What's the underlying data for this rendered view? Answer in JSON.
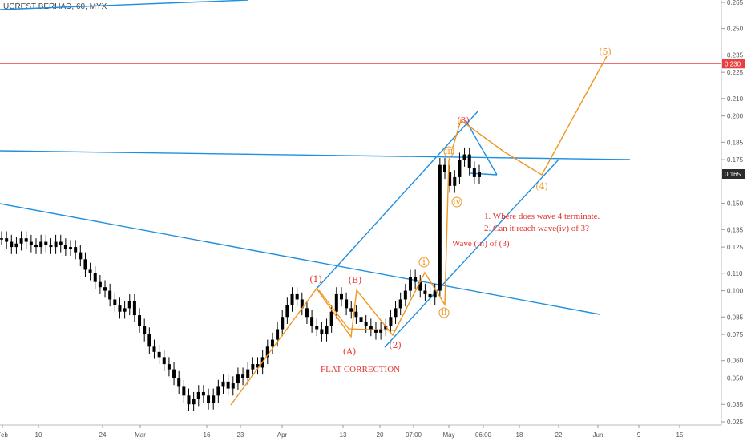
{
  "header": {
    "symbol_label": "UCREST BERHAD, 60, MYX"
  },
  "colors": {
    "trend": "#1f8fe0",
    "wave": "#f0961e",
    "label": "#e3342f",
    "candle": "#000000",
    "level": "#e84040",
    "level_tag": "#e84040",
    "last_tag": "#2b2b2b"
  },
  "chart_data": {
    "type": "candlestick",
    "title": "UCREST BERHAD, 60, MYX",
    "ylim": [
      0.025,
      0.265
    ],
    "y_ticks": [
      "0.265",
      "0.250",
      "0.235",
      "0.225",
      "0.210",
      "0.200",
      "0.185",
      "0.175",
      "0.150",
      "0.135",
      "0.125",
      "0.110",
      "0.100",
      "0.085",
      "0.075",
      "0.060",
      "0.050",
      "0.035",
      "0.025"
    ],
    "x_ticks": [
      "Feb",
      "10",
      "24",
      "Mar",
      "16",
      "23",
      "Apr",
      "13",
      "20",
      "07:00",
      "May",
      "06:00",
      "18",
      "22",
      "Jun",
      "9",
      "15"
    ],
    "price_level": 0.23,
    "price_level_label": "0.230",
    "last_price_label": "0.165",
    "price_bars": [
      0.13,
      0.128,
      0.125,
      0.127,
      0.13,
      0.128,
      0.126,
      0.125,
      0.128,
      0.126,
      0.125,
      0.128,
      0.126,
      0.124,
      0.125,
      0.122,
      0.118,
      0.112,
      0.11,
      0.105,
      0.102,
      0.1,
      0.095,
      0.092,
      0.088,
      0.09,
      0.094,
      0.086,
      0.08,
      0.075,
      0.068,
      0.065,
      0.062,
      0.058,
      0.055,
      0.05,
      0.045,
      0.04,
      0.035,
      0.038,
      0.042,
      0.04,
      0.036,
      0.04,
      0.045,
      0.048,
      0.044,
      0.047,
      0.052,
      0.05,
      0.055,
      0.058,
      0.056,
      0.062,
      0.068,
      0.072,
      0.078,
      0.085,
      0.092,
      0.098,
      0.095,
      0.09,
      0.085,
      0.08,
      0.078,
      0.075,
      0.08,
      0.088,
      0.098,
      0.095,
      0.09,
      0.088,
      0.085,
      0.082,
      0.08,
      0.078,
      0.076,
      0.078,
      0.08,
      0.085,
      0.09,
      0.095,
      0.1,
      0.108,
      0.105,
      0.1,
      0.098,
      0.096,
      0.1,
      0.172,
      0.168,
      0.16,
      0.165,
      0.175,
      0.178,
      0.17,
      0.165,
      0.168
    ],
    "annotations": [
      "(1)",
      "(B)",
      "(A)",
      "(2)",
      "i",
      "ii",
      "iii",
      "(3)",
      "iv",
      "(4)",
      "(5)"
    ],
    "notes": {
      "flat_correction": "FLAT CORRECTION",
      "wave_label": "Wave (iii) of (3)",
      "question_1": "1. Where does wave 4 terminate.",
      "question_2": "2. Can it reach wave(iv) of 3?"
    }
  }
}
